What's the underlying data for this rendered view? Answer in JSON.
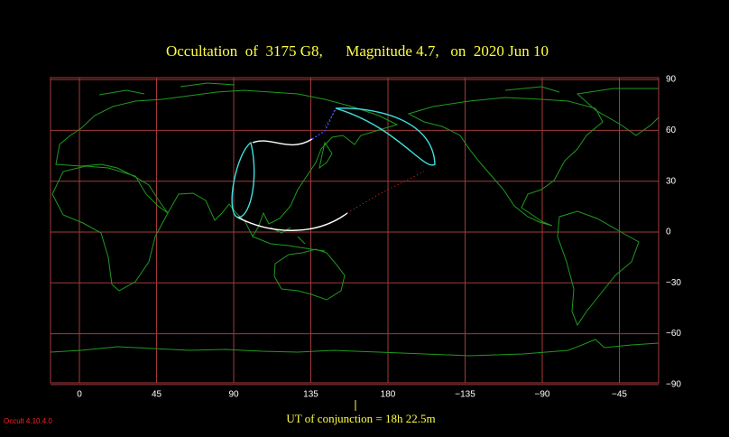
{
  "title": "Occultation  of  3175 G8,      Magnitude 4.7,   on  2020 Jun 10",
  "xticks": [
    0,
    45,
    90,
    135,
    180,
    {
      "value": -135,
      "label": "−135"
    },
    {
      "value": -90,
      "label": "−90"
    },
    {
      "value": -45,
      "label": "−45"
    }
  ],
  "yticks": [
    90,
    60,
    30,
    0,
    {
      "value": -30,
      "label": "−30"
    },
    {
      "value": -60,
      "label": "−60"
    },
    {
      "value": -90,
      "label": "−90"
    }
  ],
  "conjunction": "UT of conjunction = 18h 22.5m",
  "version": "Occult 4.10.4.0"
}
